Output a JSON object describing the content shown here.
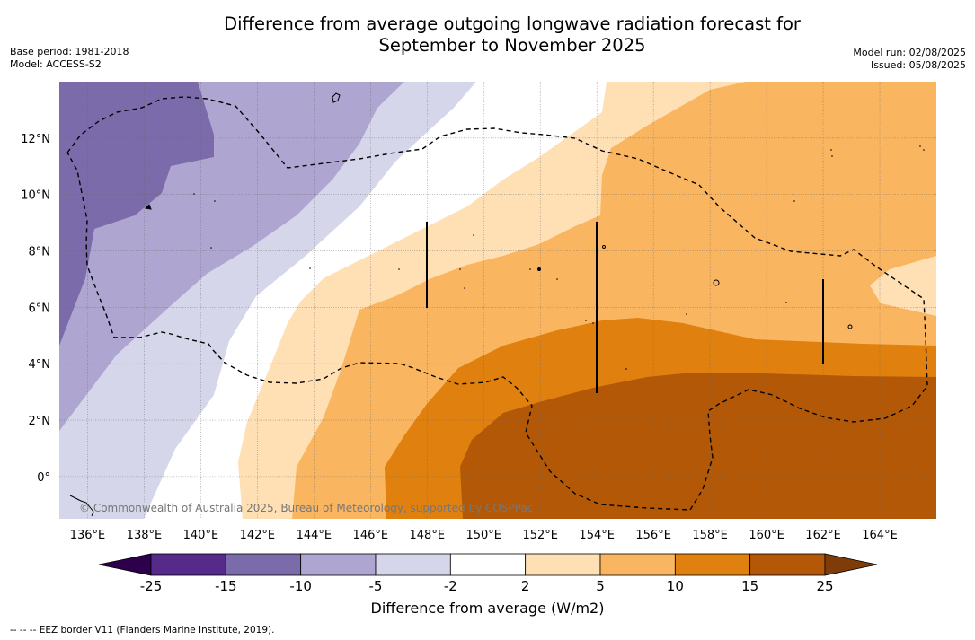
{
  "title_line1": "Difference from average outgoing longwave radiation forecast for",
  "title_line2": "September to November 2025",
  "meta": {
    "base_period": "Base period: 1981-2018",
    "model": "Model: ACCESS-S2",
    "model_run": "Model run: 02/08/2025",
    "issued": "Issued: 05/08/2025"
  },
  "map": {
    "lon_labels": [
      "136°E",
      "138°E",
      "140°E",
      "142°E",
      "144°E",
      "146°E",
      "148°E",
      "150°E",
      "152°E",
      "154°E",
      "156°E",
      "158°E",
      "160°E",
      "162°E",
      "164°E"
    ],
    "lon_values": [
      136,
      138,
      140,
      142,
      144,
      146,
      148,
      150,
      152,
      154,
      156,
      158,
      160,
      162,
      164
    ],
    "lat_labels": [
      "12°N",
      "10°N",
      "8°N",
      "6°N",
      "4°N",
      "2°N",
      "0°"
    ],
    "lat_values": [
      12,
      10,
      8,
      6,
      4,
      2,
      0
    ],
    "lon_range": [
      135,
      166
    ],
    "lat_range": [
      -1.5,
      14
    ],
    "copyright": "© Commonwealth of Australia 2025, Bureau of Meteorology, supported by COSPPac"
  },
  "colorbar": {
    "title": "Difference from average (W/m2)",
    "ticks": [
      "-25",
      "-15",
      "-10",
      "-5",
      "-2",
      "2",
      "5",
      "10",
      "15",
      "25"
    ],
    "colors": [
      "#552a8a",
      "#7b6bab",
      "#aea6d0",
      "#d6d6ea",
      "#ffffff",
      "#fee0b4",
      "#fab560",
      "#e0800f",
      "#b35806"
    ],
    "under_color": "#2d004b",
    "over_color": "#7f3b08"
  },
  "footnote": "--  --  -- EEZ border V11 (Flanders Marine Institute, 2019)."
}
